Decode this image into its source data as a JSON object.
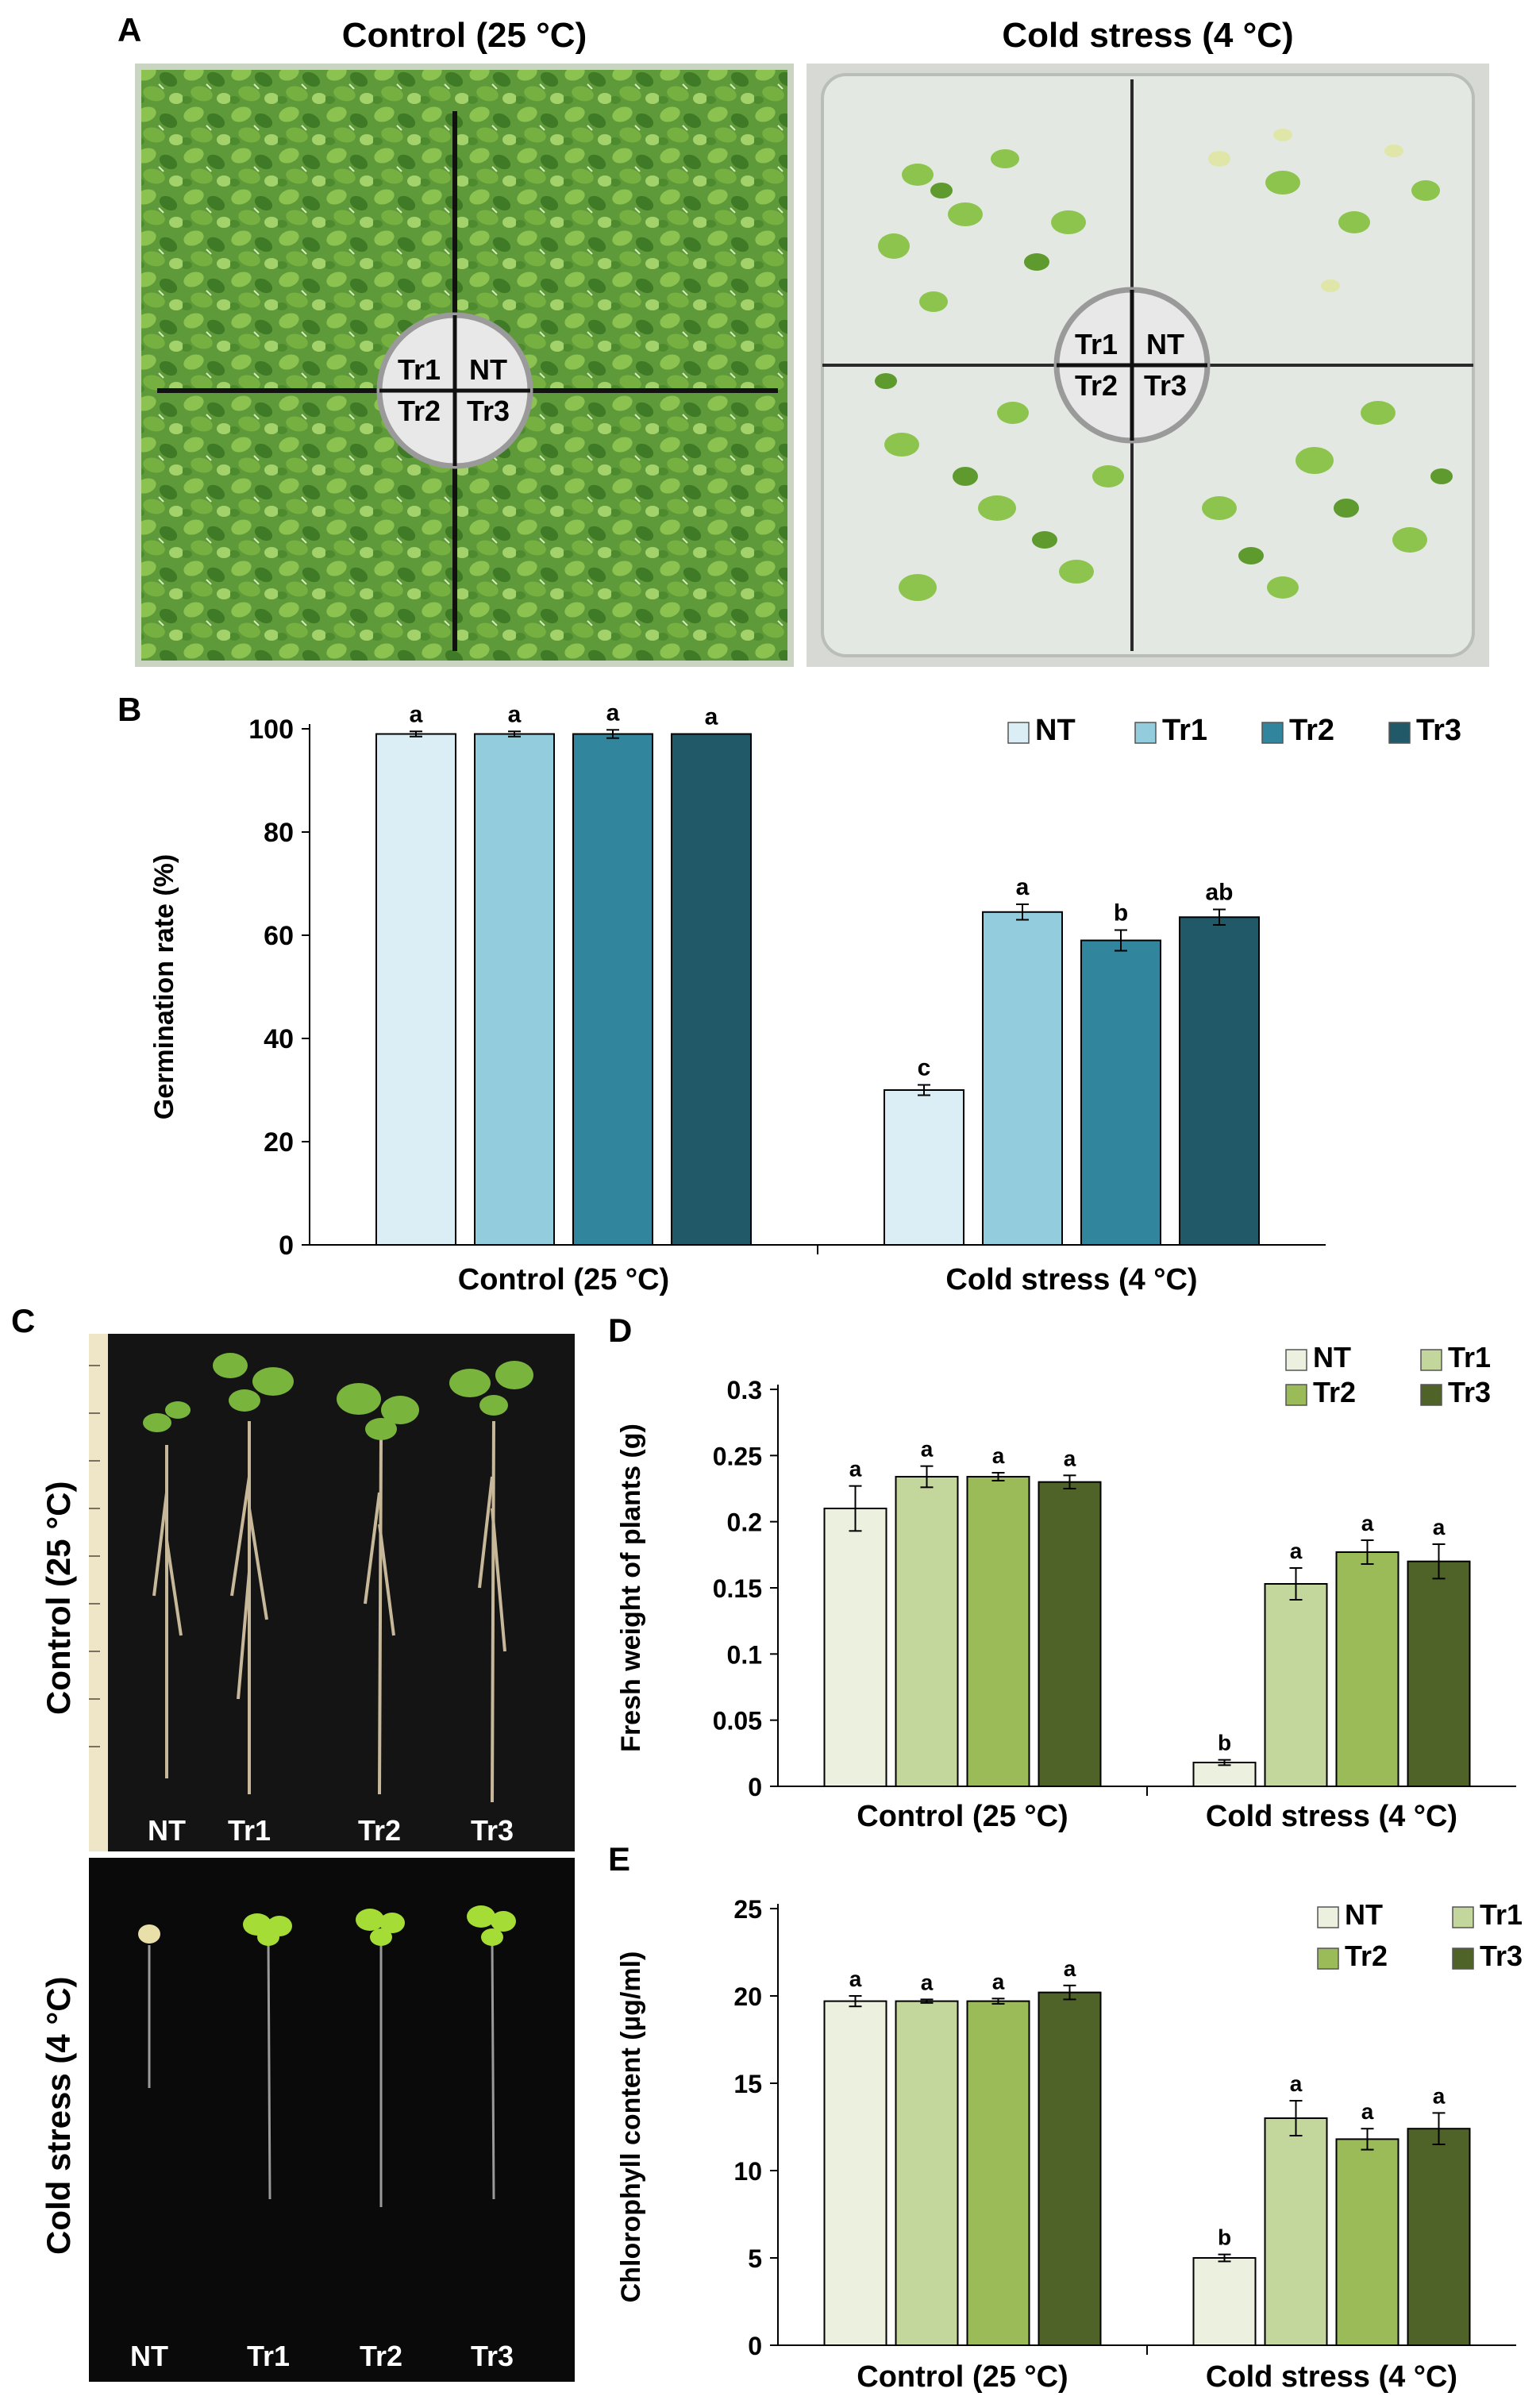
{
  "panels": {
    "a": "A",
    "b": "B",
    "c": "C",
    "d": "D",
    "e": "E"
  },
  "panel_a": {
    "left_title": "Control (25 °C)",
    "right_title": "Cold stress (4 °C)",
    "quadrants": [
      "Tr1",
      "NT",
      "Tr2",
      "Tr3"
    ]
  },
  "panel_c": {
    "top_label": "Control (25 °C)",
    "bottom_label": "Cold stress (4 °C)",
    "plant_labels": [
      "NT",
      "Tr1",
      "Tr2",
      "Tr3"
    ]
  },
  "colors": {
    "b_series": [
      "#dbeef5",
      "#93cddd",
      "#31859c",
      "#215968"
    ],
    "de_series": [
      "#ebf1de",
      "#c3d69b",
      "#9bbb59",
      "#4f6228"
    ]
  },
  "chart_data": [
    {
      "id": "B",
      "type": "bar",
      "categories": [
        "Control (25 °C)",
        "Cold stress (4 °C)"
      ],
      "series": [
        {
          "name": "NT",
          "values": [
            99,
            30
          ],
          "errors": [
            0.5,
            1
          ],
          "letters": [
            "a",
            "c"
          ]
        },
        {
          "name": "Tr1",
          "values": [
            99,
            64.5
          ],
          "errors": [
            0.5,
            1.5
          ],
          "letters": [
            "a",
            "a"
          ]
        },
        {
          "name": "Tr2",
          "values": [
            99,
            59
          ],
          "errors": [
            0.8,
            2
          ],
          "letters": [
            "a",
            "b"
          ]
        },
        {
          "name": "Tr3",
          "values": [
            99,
            63.5
          ],
          "errors": [
            0,
            1.5
          ],
          "letters": [
            "a",
            "ab"
          ]
        }
      ],
      "ylabel": "Germination rate (%)",
      "ylim": [
        0,
        100
      ],
      "yticks": [
        "0",
        "20",
        "40",
        "60",
        "80",
        "100"
      ],
      "legend": "top-right"
    },
    {
      "id": "D",
      "type": "bar",
      "categories": [
        "Control (25 °C)",
        "Cold stress (4 °C)"
      ],
      "series": [
        {
          "name": "NT",
          "values": [
            0.21,
            0.018
          ],
          "errors": [
            0.017,
            0.002
          ],
          "letters": [
            "a",
            "b"
          ]
        },
        {
          "name": "Tr1",
          "values": [
            0.234,
            0.153
          ],
          "errors": [
            0.008,
            0.012
          ],
          "letters": [
            "a",
            "a"
          ]
        },
        {
          "name": "Tr2",
          "values": [
            0.234,
            0.177
          ],
          "errors": [
            0.003,
            0.009
          ],
          "letters": [
            "a",
            "a"
          ]
        },
        {
          "name": "Tr3",
          "values": [
            0.23,
            0.17
          ],
          "errors": [
            0.005,
            0.013
          ],
          "letters": [
            "a",
            "a"
          ]
        }
      ],
      "ylabel": "Fresh weight of plants (g)",
      "ylim": [
        0,
        0.3
      ],
      "yticks": [
        "0",
        "0.05",
        "0.1",
        "0.15",
        "0.2",
        "0.25",
        "0.3"
      ],
      "legend": "top-right"
    },
    {
      "id": "E",
      "type": "bar",
      "categories": [
        "Control (25 °C)",
        "Cold stress (4 °C)"
      ],
      "series": [
        {
          "name": "NT",
          "values": [
            19.7,
            5
          ],
          "errors": [
            0.3,
            0.2
          ],
          "letters": [
            "a",
            "b"
          ]
        },
        {
          "name": "Tr1",
          "values": [
            19.7,
            13
          ],
          "errors": [
            0.1,
            1
          ],
          "letters": [
            "a",
            "a"
          ]
        },
        {
          "name": "Tr2",
          "values": [
            19.7,
            11.8
          ],
          "errors": [
            0.15,
            0.6
          ],
          "letters": [
            "a",
            "a"
          ]
        },
        {
          "name": "Tr3",
          "values": [
            20.2,
            12.4
          ],
          "errors": [
            0.4,
            0.9
          ],
          "letters": [
            "a",
            "a"
          ]
        }
      ],
      "ylabel": "Chlorophyll content (µg/ml)",
      "ylim": [
        0,
        25
      ],
      "yticks": [
        "0",
        "5",
        "10",
        "15",
        "20",
        "25"
      ],
      "legend": "top-right"
    }
  ]
}
